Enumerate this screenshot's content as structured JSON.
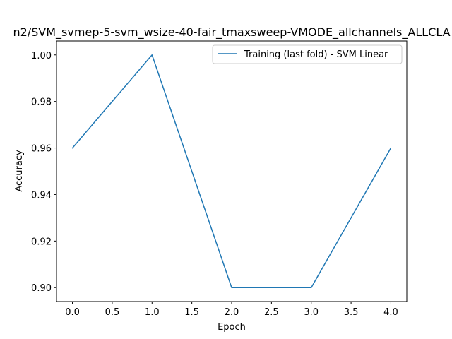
{
  "chart_data": {
    "type": "line",
    "title": "n2/SVM_svmep-5-svm_wsize-40-fair_tmaxsweep-VMODE_allchannels_ALLCLA",
    "xlabel": "Epoch",
    "ylabel": "Accuracy",
    "xlim": [
      -0.2,
      4.2
    ],
    "ylim": [
      0.894,
      1.006
    ],
    "xticks": [
      0.0,
      0.5,
      1.0,
      1.5,
      2.0,
      2.5,
      3.0,
      3.5,
      4.0
    ],
    "xtick_labels": [
      "0.0",
      "0.5",
      "1.0",
      "1.5",
      "2.0",
      "2.5",
      "3.0",
      "3.5",
      "4.0"
    ],
    "yticks": [
      0.9,
      0.92,
      0.94,
      0.96,
      0.98,
      1.0
    ],
    "ytick_labels": [
      "0.90",
      "0.92",
      "0.94",
      "0.96",
      "0.98",
      "1.00"
    ],
    "grid": false,
    "legend_position": "top-right",
    "series": [
      {
        "name": "Training (last fold) - SVM Linear",
        "color": "#1f77b4",
        "x": [
          0,
          1,
          2,
          3,
          4
        ],
        "y": [
          0.96,
          1.0,
          0.9,
          0.9,
          0.96
        ]
      }
    ]
  }
}
